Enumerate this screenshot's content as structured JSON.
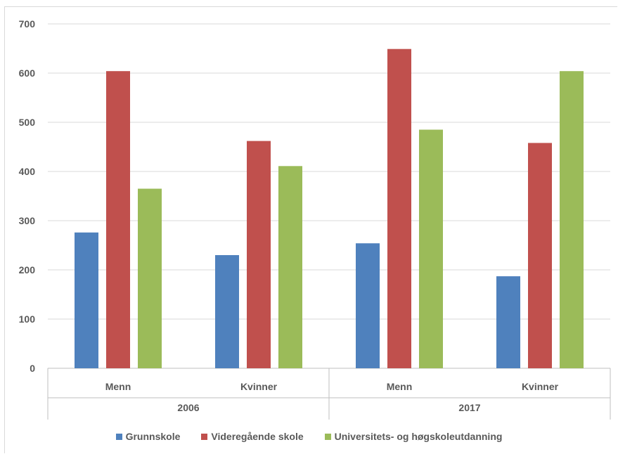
{
  "chart_data": {
    "type": "bar",
    "title": "",
    "xlabel": "",
    "ylabel": "",
    "ylim": [
      0,
      700
    ],
    "yticks": [
      0,
      100,
      200,
      300,
      400,
      500,
      600,
      700
    ],
    "grid": true,
    "legend_position": "bottom",
    "categories": [
      "Menn",
      "Kvinner",
      "Menn",
      "Kvinner"
    ],
    "groups": [
      {
        "label": "2006",
        "categories": [
          "Menn",
          "Kvinner"
        ]
      },
      {
        "label": "2017",
        "categories": [
          "Menn",
          "Kvinner"
        ]
      }
    ],
    "series": [
      {
        "name": "Grunnskole",
        "color": "#4f81bd",
        "values": [
          276,
          230,
          254,
          187
        ]
      },
      {
        "name": "Videregående skole",
        "color": "#c0504d",
        "values": [
          604,
          462,
          649,
          458
        ]
      },
      {
        "name": "Universitets- og høgskoleutdanning",
        "color": "#9bbb59",
        "values": [
          365,
          411,
          485,
          604
        ]
      }
    ]
  }
}
